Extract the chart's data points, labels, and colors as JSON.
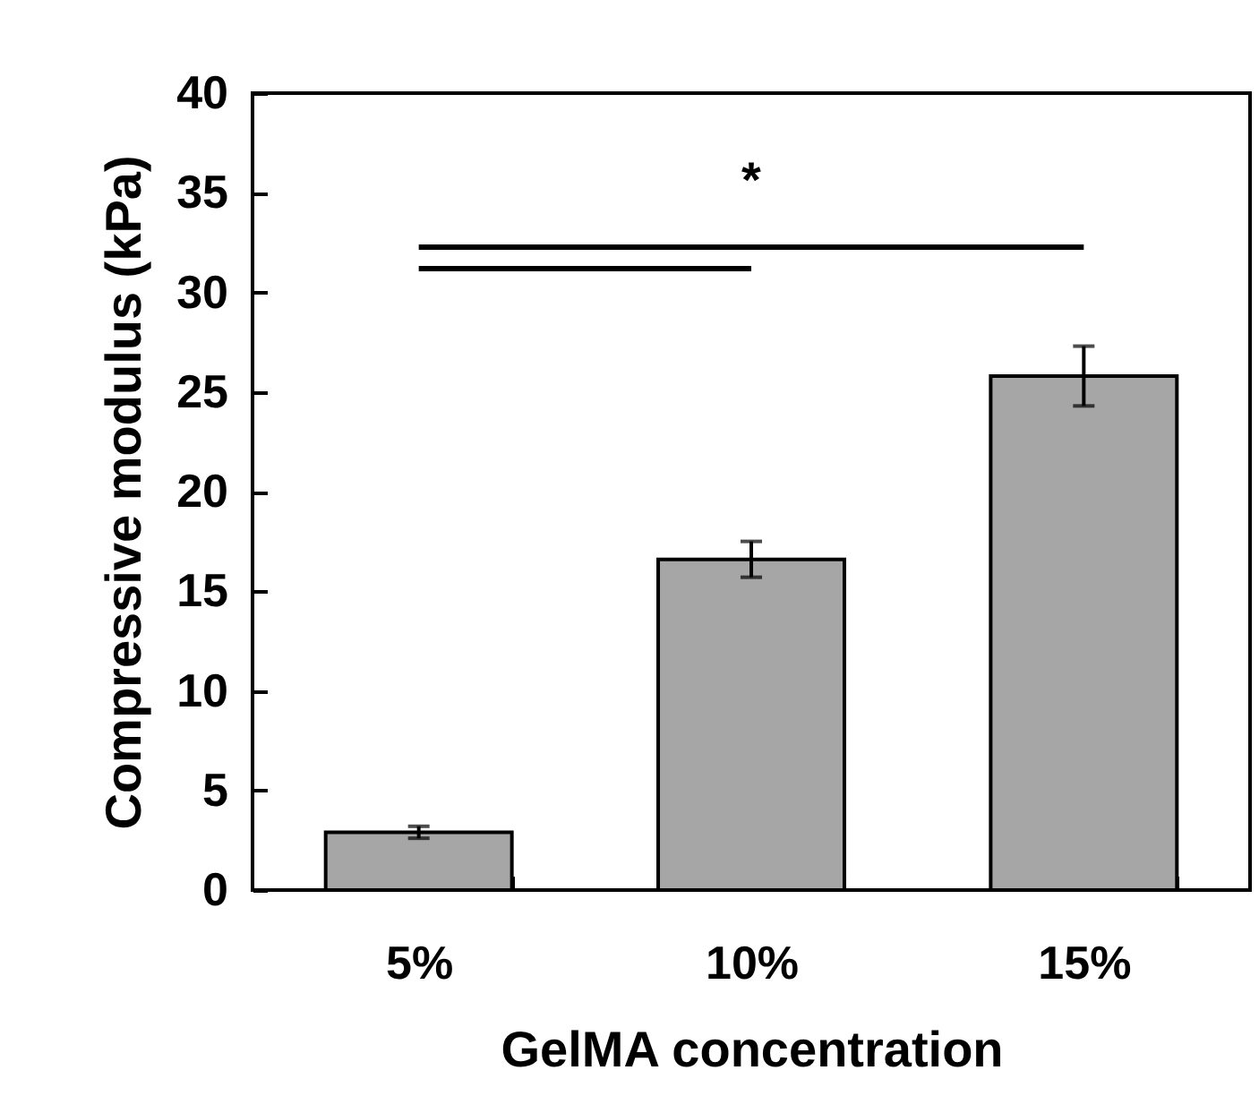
{
  "chart_data": {
    "type": "bar",
    "xlabel": "GelMA concentration",
    "ylabel": "Compressive modulus (kPa)",
    "categories": [
      "5%",
      "10%",
      "15%"
    ],
    "values": [
      2.9,
      16.6,
      25.8
    ],
    "errors": [
      0.3,
      0.9,
      1.5
    ],
    "color": "#a6a6a6",
    "ylim": [
      0,
      40
    ],
    "yticks": [
      0,
      5,
      10,
      15,
      20,
      25,
      30,
      35,
      40
    ],
    "grid": false,
    "annotations": [
      "*"
    ]
  }
}
